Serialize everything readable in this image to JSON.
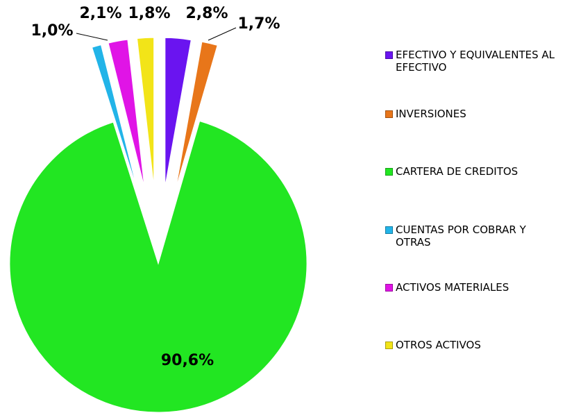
{
  "chart_data": {
    "type": "pie",
    "categories": [
      "EFECTIVO Y EQUIVALENTES AL EFECTIVO",
      "INVERSIONES",
      "CARTERA DE CREDITOS",
      "CUENTAS POR COBRAR Y OTRAS",
      "ACTIVOS MATERIALES",
      "OTROS ACTIVOS"
    ],
    "values": [
      2.8,
      1.7,
      90.6,
      1.0,
      2.1,
      1.8
    ],
    "value_labels": [
      "2,8%",
      "1,7%",
      "90,6%",
      "1,0%",
      "2,1%",
      "1,8%"
    ],
    "colors": [
      "#6a14f0",
      "#e8761a",
      "#22e622",
      "#22b4e8",
      "#e014e6",
      "#f2e418"
    ],
    "legend": "right"
  }
}
